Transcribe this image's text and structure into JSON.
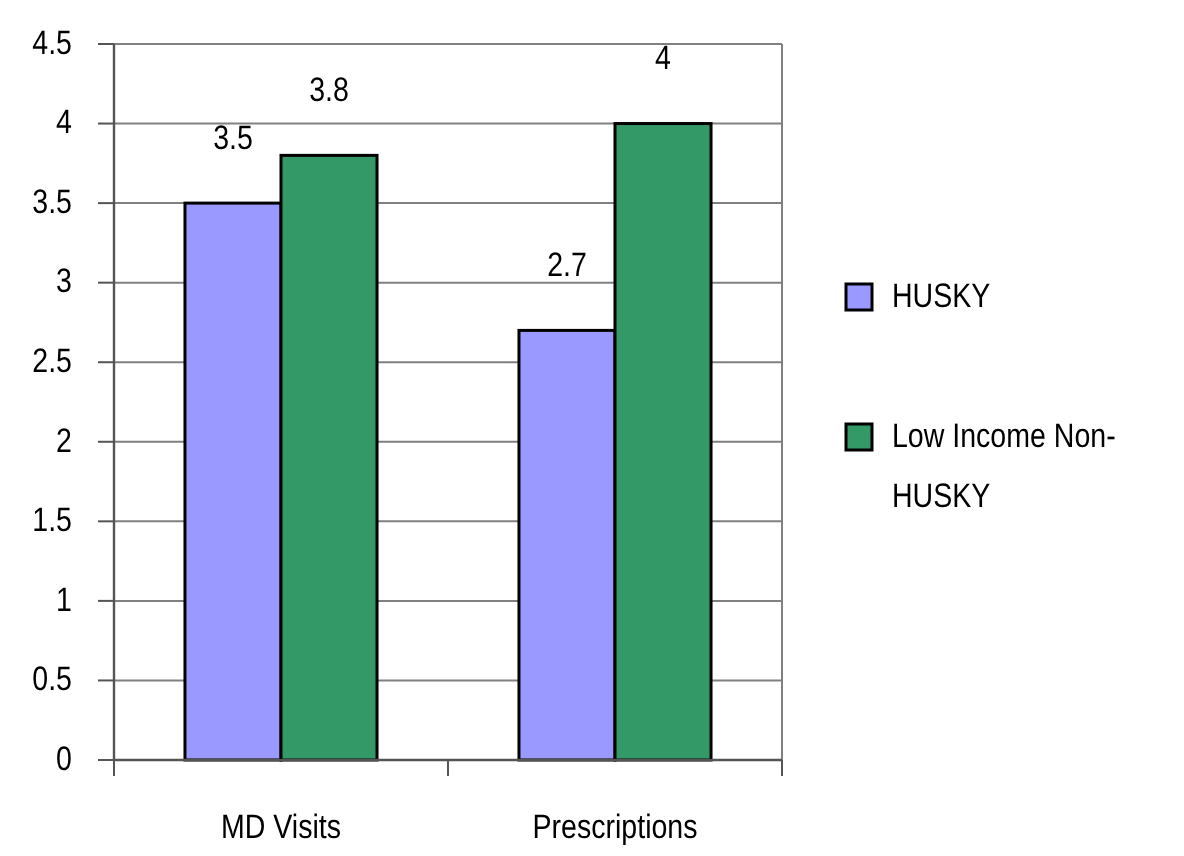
{
  "chart_data": {
    "type": "bar",
    "categories": [
      "MD Visits",
      "Prescriptions"
    ],
    "series": [
      {
        "name": "HUSKY",
        "color": "#9999ff",
        "values": [
          3.5,
          2.7
        ]
      },
      {
        "name": "Low Income Non-HUSKY",
        "color": "#339966",
        "values": [
          3.8,
          4
        ]
      }
    ],
    "ylim": [
      0,
      4.5
    ],
    "yticks": [
      0,
      0.5,
      1,
      1.5,
      2,
      2.5,
      3,
      3.5,
      4,
      4.5
    ],
    "grid": "y",
    "legend": "right",
    "data_labels": true
  }
}
